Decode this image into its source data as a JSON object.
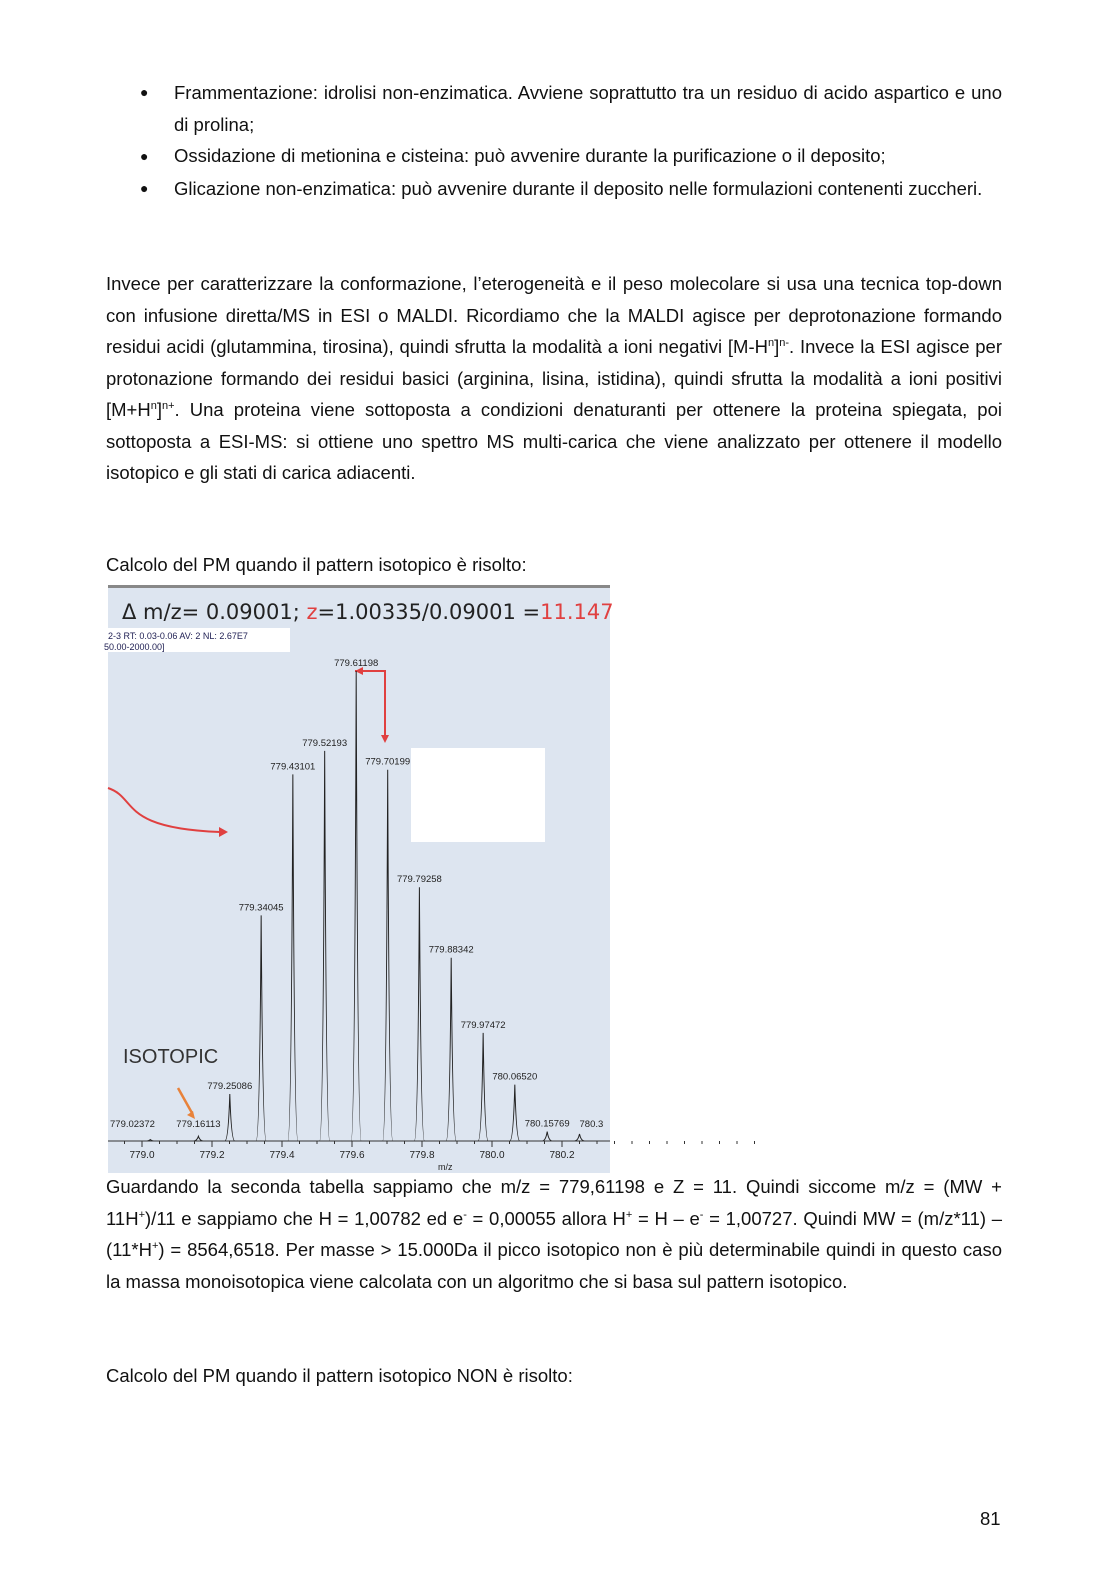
{
  "bullets": [
    "Frammentazione: idrolisi non-enzimatica. Avviene soprattutto tra un residuo di acido aspartico e uno di prolina;",
    "Ossidazione di metionina e cisteina: può avvenire durante la purificazione o il deposito;",
    "Glicazione non-enzimatica: può avvenire durante il deposito nelle formulazioni contenenti zuccheri."
  ],
  "para1": {
    "a": "Invece per caratterizzare la conformazione, l’eterogeneità e il peso molecolare si usa una tecnica top-down con infusione diretta/MS in ESI o MALDI. Ricordiamo che la MALDI agisce per deprotonazione formando residui acidi (glutammina, tirosina), quindi sfrutta la modalità a ioni negativi [M-H",
    "sup1": "n",
    "b": "]",
    "sup2": "n-",
    "c": ". Invece la ESI agisce per protonazione formando dei residui basici (arginina, lisina, istidina), quindi sfrutta la modalità a ioni positivi [M+H",
    "sup3": "n",
    "d": "]",
    "sup4": "n+",
    "e": ". Una proteina viene sottoposta a condizioni denaturanti per ottenere la proteina spiegata, poi sottoposta a ESI-MS: si ottiene uno spettro MS multi-carica che viene analizzato per ottenere il modello isotopico e gli stati di carica adiacenti."
  },
  "caption1": "Calcolo del PM quando il pattern isotopico è risolto:",
  "figure": {
    "title_a": "Δ m/z= 0.09001; ",
    "title_z": "z",
    "title_b": "=1.00335/0.09001 =",
    "title_result": "11.147",
    "info1": "2-3  RT: 0.03-0.06  AV: 2  NL: 2.67E7",
    "info2": "50.00-2000.00]",
    "isotopic_label": "ISOTOPIC",
    "xlabel": "m/z",
    "xticks": [
      "779.0",
      "779.2",
      "779.4",
      "779.6",
      "779.8",
      "780.0",
      "780.2"
    ],
    "peaks": [
      {
        "mz": 779.02372,
        "label": "779.02372",
        "rel": 0.3
      },
      {
        "mz": 779.16113,
        "label": "779.16113",
        "rel": 1
      },
      {
        "mz": 779.25086,
        "label": "779.25086",
        "rel": 10
      },
      {
        "mz": 779.34045,
        "label": "779.34045",
        "rel": 48
      },
      {
        "mz": 779.43101,
        "label": "779.43101",
        "rel": 78
      },
      {
        "mz": 779.52193,
        "label": "779.52193",
        "rel": 83
      },
      {
        "mz": 779.61198,
        "label": "779.61198",
        "rel": 100
      },
      {
        "mz": 779.70199,
        "label": "779.70199",
        "rel": 79
      },
      {
        "mz": 779.79258,
        "label": "779.79258",
        "rel": 54
      },
      {
        "mz": 779.88342,
        "label": "779.88342",
        "rel": 39
      },
      {
        "mz": 779.97472,
        "label": "779.97472",
        "rel": 23
      },
      {
        "mz": 780.0652,
        "label": "780.06520",
        "rel": 12
      },
      {
        "mz": 780.15769,
        "label": "780.15769",
        "rel": 2
      },
      {
        "mz": 780.25,
        "label": "780.3",
        "rel": 1.5
      }
    ],
    "colors": {
      "background": "#dde5f0",
      "accent_red": "#e04040",
      "arrow_orange": "#e8823a"
    }
  },
  "para2": {
    "a": "Guardando la seconda tabella sappiamo che m/z = 779,61198 e Z = 11. Quindi siccome m/z = (MW + 11H",
    "s1": "+",
    "b": ")/11 e sappiamo che H = 1,00782 ed e",
    "s2": "-",
    "c": " = 0,00055 allora H",
    "s3": "+",
    "d": " = H – e",
    "s4": "-",
    "e": " = 1,00727. Quindi MW = (m/z*11) – (11*H",
    "s5": "+",
    "f": ") = 8564,6518. Per masse > 15.000Da il picco isotopico non è più determinabile quindi in questo caso la massa monoisotopica viene calcolata con un algoritmo che si basa sul pattern isotopico."
  },
  "caption2": "Calcolo del PM quando il pattern isotopico NON è risolto:",
  "page_number": "81"
}
